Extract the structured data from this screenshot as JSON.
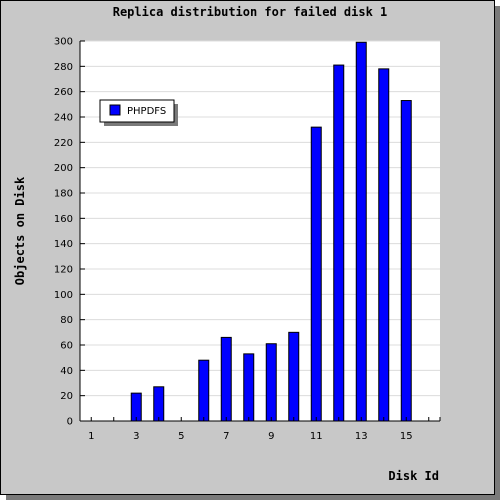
{
  "chart_data": {
    "type": "bar",
    "title": "Replica distribution for failed disk 1",
    "xlabel": "Disk Id",
    "ylabel": "Objects on Disk",
    "x_ticks": [
      "1",
      "3",
      "5",
      "7",
      "9",
      "11",
      "13",
      "15"
    ],
    "y_ticks": [
      "0",
      "20",
      "40",
      "60",
      "80",
      "100",
      "120",
      "140",
      "160",
      "180",
      "200",
      "220",
      "240",
      "260",
      "280",
      "300"
    ],
    "ylim": [
      0,
      300
    ],
    "grid": true,
    "legend_position": "top-left",
    "series": [
      {
        "name": "PHPDFS",
        "color": "#0000ff",
        "x": [
          1,
          2,
          3,
          4,
          5,
          6,
          7,
          8,
          9,
          10,
          11,
          12,
          13,
          14,
          15,
          16
        ],
        "values": [
          0,
          0,
          22,
          27,
          0,
          48,
          66,
          53,
          61,
          70,
          232,
          281,
          299,
          278,
          253,
          0
        ]
      }
    ]
  }
}
